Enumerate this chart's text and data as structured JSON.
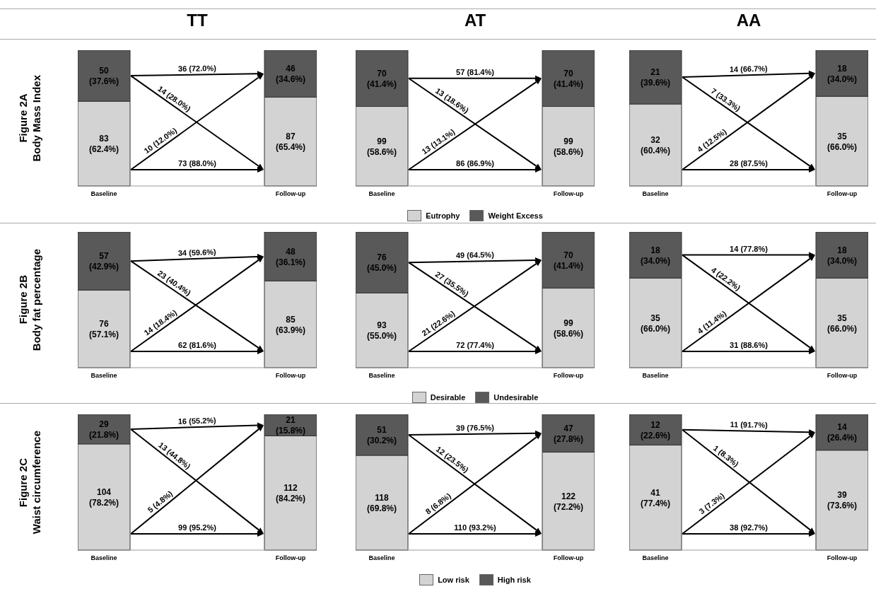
{
  "chart_data": [
    {
      "type": "bar",
      "stacked": true,
      "title": "TT",
      "ylabel": "Figure 2A\nBody Mass Index",
      "categories": [
        "Baseline",
        "Follow-up"
      ],
      "series": [
        {
          "color": "#d3d3d3",
          "values": [
            83,
            87
          ],
          "value_labels": [
            "83 (62.4%)",
            "87 (65.4%)"
          ]
        },
        {
          "color": "#595959",
          "values": [
            50,
            46
          ],
          "value_labels": [
            "50 (37.6%)",
            "46 (34.6%)"
          ]
        }
      ],
      "annotations": [
        "36 (72.0%)",
        "14 (28.0%)",
        "10 (12.0%)",
        "73 (88.0%)"
      ]
    },
    {
      "type": "bar",
      "stacked": true,
      "title": "AT",
      "categories": [
        "Baseline",
        "Follow-up"
      ],
      "legend": "bottom",
      "series": [
        {
          "name": "Eutrophy",
          "color": "#d3d3d3",
          "values": [
            99,
            99
          ],
          "value_labels": [
            "99 (58.6%)",
            "99 (58.6%)"
          ]
        },
        {
          "name": "Weight Excess",
          "color": "#595959",
          "values": [
            70,
            70
          ],
          "value_labels": [
            "70 (41.4%)",
            "70 (41.4%)"
          ]
        }
      ],
      "annotations": [
        "57 (81.4%)",
        "13 (18.6%)",
        "13 (13.1%)",
        "86 (86.9%)"
      ]
    },
    {
      "type": "bar",
      "stacked": true,
      "title": "AA",
      "categories": [
        "Baseline",
        "Follow-up"
      ],
      "series": [
        {
          "color": "#d3d3d3",
          "values": [
            32,
            35
          ],
          "value_labels": [
            "32 (60.4%)",
            "35 (66.0%)"
          ]
        },
        {
          "color": "#595959",
          "values": [
            21,
            18
          ],
          "value_labels": [
            "21 (39.6%)",
            "18 (34.0%)"
          ]
        }
      ],
      "annotations": [
        "14 (66.7%)",
        "7 (33.3%)",
        "4 (12.5%)",
        "28 (87.5%)"
      ]
    },
    {
      "type": "bar",
      "stacked": true,
      "ylabel": "Figure 2B\nBody fat percentage",
      "categories": [
        "Baseline",
        "Follow-up"
      ],
      "series": [
        {
          "color": "#d3d3d3",
          "values": [
            76,
            85
          ],
          "value_labels": [
            "76 (57.1%)",
            "85 (63.9%)"
          ]
        },
        {
          "color": "#595959",
          "values": [
            57,
            48
          ],
          "value_labels": [
            "57 (42.9%)",
            "48 (36.1%)"
          ]
        }
      ],
      "annotations": [
        "34 (59.6%)",
        "23 (40.4%)",
        "14 (18.4%)",
        "62 (81.6%)"
      ]
    },
    {
      "type": "bar",
      "stacked": true,
      "categories": [
        "Baseline",
        "Follow-up"
      ],
      "legend": "bottom",
      "series": [
        {
          "name": "Desirable",
          "color": "#d3d3d3",
          "values": [
            93,
            99
          ],
          "value_labels": [
            "93 (55.0%)",
            "99 (58.6%)"
          ]
        },
        {
          "name": "Undesirable",
          "color": "#595959",
          "values": [
            76,
            70
          ],
          "value_labels": [
            "76 (45.0%)",
            "70 (41.4%)"
          ]
        }
      ],
      "annotations": [
        "49 (64.5%)",
        "27 (35.5%)",
        "21 (22.6%)",
        "72 (77.4%)"
      ]
    },
    {
      "type": "bar",
      "stacked": true,
      "categories": [
        "Baseline",
        "Follow-up"
      ],
      "series": [
        {
          "color": "#d3d3d3",
          "values": [
            35,
            35
          ],
          "value_labels": [
            "35 (66.0%)",
            "35 (66.0%)"
          ]
        },
        {
          "color": "#595959",
          "values": [
            18,
            18
          ],
          "value_labels": [
            "18 (34.0%)",
            "18 (34.0%)"
          ]
        }
      ],
      "annotations": [
        "14 (77.8%)",
        "4 (22.2%)",
        "4 (11.4%)",
        "31 (88.6%)"
      ]
    },
    {
      "type": "bar",
      "stacked": true,
      "ylabel": "Figure 2C\nWaist circumference",
      "categories": [
        "Baseline",
        "Follow-up"
      ],
      "series": [
        {
          "color": "#d3d3d3",
          "values": [
            104,
            112
          ],
          "value_labels": [
            "104 (78.2%)",
            "112 (84.2%)"
          ]
        },
        {
          "color": "#595959",
          "values": [
            29,
            21
          ],
          "value_labels": [
            "29 (21.8%)",
            "21 (15.8%)"
          ]
        }
      ],
      "annotations": [
        "16 (55.2%)",
        "13 (44.8%)",
        "5 (4.8%)",
        "99 (95.2%)"
      ]
    },
    {
      "type": "bar",
      "stacked": true,
      "categories": [
        "Baseline",
        "Follow-up"
      ],
      "legend": "bottom",
      "series": [
        {
          "name": "Low risk",
          "color": "#d3d3d3",
          "values": [
            118,
            122
          ],
          "value_labels": [
            "118 (69.8%)",
            "122 (72.2%)"
          ]
        },
        {
          "name": "High risk",
          "color": "#595959",
          "values": [
            51,
            47
          ],
          "value_labels": [
            "51 (30.2%)",
            "47 (27.8%)"
          ]
        }
      ],
      "annotations": [
        "39 (76.5%)",
        "12 (23.5%)",
        "8 (6.8%)",
        "110 (93.2%)"
      ]
    },
    {
      "type": "bar",
      "stacked": true,
      "categories": [
        "Baseline",
        "Follow-up"
      ],
      "series": [
        {
          "color": "#d3d3d3",
          "values": [
            41,
            39
          ],
          "value_labels": [
            "41 (77.4%)",
            "39 (73.6%)"
          ]
        },
        {
          "color": "#595959",
          "values": [
            12,
            14
          ],
          "value_labels": [
            "12 (22.6%)",
            "14 (26.4%)"
          ]
        }
      ],
      "annotations": [
        "11 (91.7%)",
        "1 (8.3%)",
        "3 (7.3%)",
        "38 (92.7%)"
      ]
    }
  ]
}
